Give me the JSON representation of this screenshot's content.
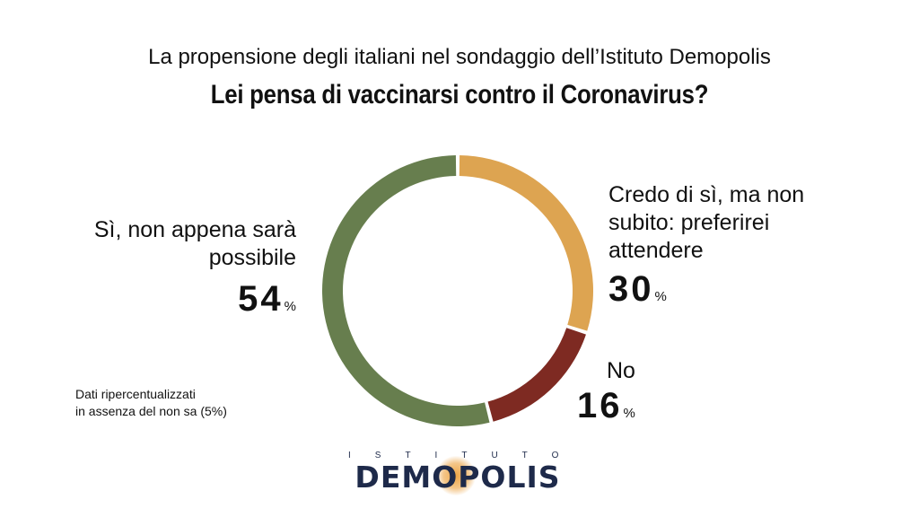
{
  "header": {
    "subtitle": "La propensione degli italiani nel sondaggio dell’Istituto Demopolis",
    "title": "Lei pensa di vaccinarsi contro il Coronavirus?"
  },
  "chart_data": {
    "type": "pie",
    "variant": "donut",
    "title": "Lei pensa di vaccinarsi contro il Coronavirus?",
    "subtitle": "La propensione degli italiani nel sondaggio dell’Istituto Demopolis",
    "unit": "%",
    "slices": [
      {
        "label": "Credo di sì, ma non subito: preferirei attendere",
        "value": 30,
        "color": "#DDA451"
      },
      {
        "label": "No",
        "value": 16,
        "color": "#7E2A22"
      },
      {
        "label": "Sì, non appena sarà possibile",
        "value": 54,
        "color": "#677E4E"
      }
    ],
    "labels_display": {
      "si": {
        "line1": "Sì, non appena sarà",
        "line2": "possibile",
        "value": "54",
        "unit": "%"
      },
      "credo": {
        "line1": "Credo di sì, ma non",
        "line2": "subito: preferirei",
        "line3": "attendere",
        "value": "30",
        "unit": "%"
      },
      "no": {
        "line1": "No",
        "value": "16",
        "unit": "%"
      }
    },
    "note": {
      "line1": "Dati ripercentualizzati",
      "line2": "in assenza del non sa (5%)"
    }
  },
  "logo": {
    "top": "ISTITUTO",
    "main": "DEMOPOLIS"
  }
}
